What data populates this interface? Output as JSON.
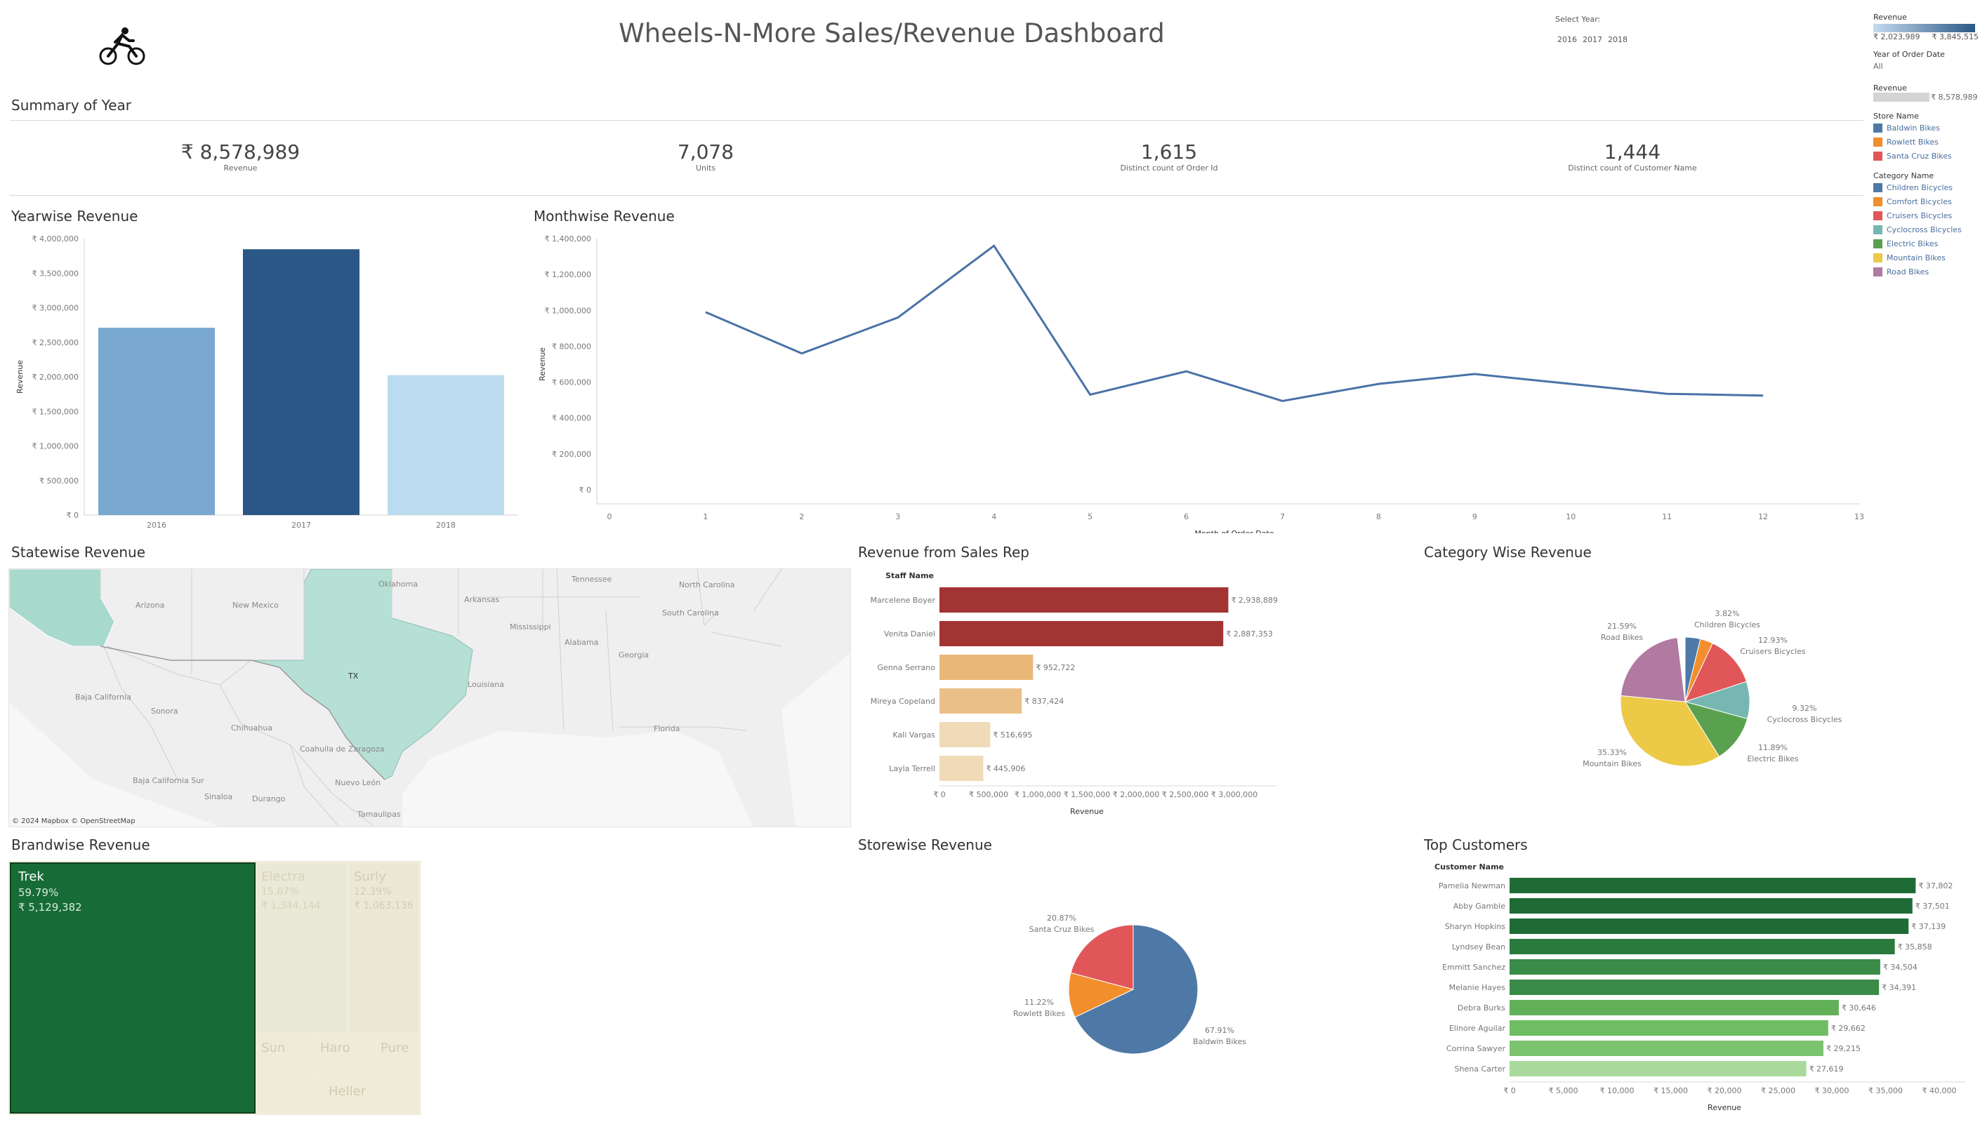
{
  "header": {
    "title": "Wheels-N-More Sales/Revenue Dashboard",
    "select_year_label": "Select Year:",
    "years": [
      "2016",
      "2017",
      "2018"
    ]
  },
  "icons": {
    "logo": "cyclist-icon"
  },
  "summary": {
    "title": "Summary of Year",
    "kpis": [
      {
        "value": "₹ 8,578,989",
        "label": "Revenue"
      },
      {
        "value": "7,078",
        "label": "Units"
      },
      {
        "value": "1,615",
        "label": "Distinct count of Order Id"
      },
      {
        "value": "1,444",
        "label": "Distinct count of Customer Name"
      }
    ]
  },
  "legend": {
    "revenue_title": "Revenue",
    "revenue_min": "₹ 2,023,989",
    "revenue_max": "₹ 3,845,515",
    "year_title": "Year of Order Date",
    "year_value": "All",
    "revenue2_title": "Revenue",
    "revenue2_value": "₹ 8,578,989",
    "store_title": "Store Name",
    "stores": [
      {
        "name": "Baldwin Bikes",
        "color": "#4e79a7"
      },
      {
        "name": "Rowlett Bikes",
        "color": "#f28e2b"
      },
      {
        "name": "Santa Cruz Bikes",
        "color": "#e15759"
      }
    ],
    "category_title": "Category Name",
    "categories": [
      {
        "name": "Children Bicycles",
        "color": "#4e79a7"
      },
      {
        "name": "Comfort Bicycles",
        "color": "#f28e2b"
      },
      {
        "name": "Cruisers Bicycles",
        "color": "#e15759"
      },
      {
        "name": "Cyclocross Bicycles",
        "color": "#76b7b2"
      },
      {
        "name": "Electric Bikes",
        "color": "#59a14f"
      },
      {
        "name": "Mountain Bikes",
        "color": "#edc948"
      },
      {
        "name": "Road Bikes",
        "color": "#b07aa1"
      }
    ]
  },
  "titles": {
    "yearwise": "Yearwise Revenue",
    "monthwise": "Monthwise Revenue",
    "statewise": "Statewise Revenue",
    "salesrep": "Revenue from Sales Rep",
    "category": "Category Wise Revenue",
    "brandwise": "Brandwise Revenue",
    "storewise": "Storewise Revenue",
    "customers": "Top Customers"
  },
  "map": {
    "labels": [
      "Arizona",
      "New Mexico",
      "Oklahoma",
      "Arkansas",
      "Tennessee",
      "North Carolina",
      "South Carolina",
      "Mississippi",
      "Alabama",
      "Georgia",
      "Louisiana",
      "Florida",
      "TX",
      "Baja California",
      "Sonora",
      "Chihuahua",
      "Coahuila de Zaragoza",
      "Baja California Sur",
      "Sinaloa",
      "Durango",
      "Nuevo León",
      "Tamaulipas"
    ],
    "credit": "© 2024 Mapbox © OpenStreetMap"
  },
  "chart_data": [
    {
      "type": "bar",
      "id": "yearwise",
      "title": "Yearwise Revenue",
      "ylabel": "Revenue",
      "categories": [
        "2016",
        "2017",
        "2018"
      ],
      "values": [
        2709484,
        3845515,
        2023989
      ],
      "ylim": [
        0,
        4000000
      ],
      "yticks": [
        "₹ 0",
        "₹ 500,000",
        "₹ 1,000,000",
        "₹ 1,500,000",
        "₹ 2,000,000",
        "₹ 2,500,000",
        "₹ 3,000,000",
        "₹ 3,500,000",
        "₹ 4,000,000"
      ],
      "colors": [
        "#79a9d0",
        "#2a5785",
        "#bbdcef"
      ],
      "gridlines": false
    },
    {
      "type": "line",
      "id": "monthwise",
      "title": "Monthwise Revenue",
      "xlabel": "Month of Order Date",
      "ylabel": "Revenue",
      "x": [
        1,
        2,
        3,
        4,
        5,
        6,
        7,
        8,
        9,
        10,
        11,
        12
      ],
      "y": [
        990000,
        760000,
        960000,
        1360000,
        530000,
        660000,
        495000,
        590000,
        645000,
        590000,
        535000,
        525000
      ],
      "xlim": [
        0,
        13
      ],
      "ylim": [
        0,
        1400000
      ],
      "xticks": [
        "0",
        "1",
        "2",
        "3",
        "4",
        "5",
        "6",
        "7",
        "8",
        "9",
        "10",
        "11",
        "12",
        "13"
      ],
      "yticks": [
        "₹ 0",
        "₹ 200,000",
        "₹ 400,000",
        "₹ 600,000",
        "₹ 800,000",
        "₹ 1,000,000",
        "₹ 1,200,000",
        "₹ 1,400,000"
      ],
      "color": "#4a72a8"
    },
    {
      "type": "bar",
      "id": "salesrep",
      "orientation": "horizontal",
      "title": "Revenue from Sales Rep",
      "xlabel": "Revenue",
      "header": "Staff Name",
      "categories": [
        "Marcelene Boyer",
        "Venita Daniel",
        "Genna Serrano",
        "Mireya Copeland",
        "Kali Vargas",
        "Layla Terrell"
      ],
      "values": [
        2938889,
        2887353,
        952722,
        837424,
        516695,
        445906
      ],
      "labels": [
        "₹ 2,938,889",
        "₹ 2,887,353",
        "₹ 952,722",
        "₹ 837,424",
        "₹ 516,695",
        "₹ 445,906"
      ],
      "colors": [
        "#a23434",
        "#a23434",
        "#e9b876",
        "#ebc088",
        "#f1dab7",
        "#f1dab7"
      ],
      "xlim": [
        0,
        3000000
      ],
      "xticks": [
        "₹ 0",
        "₹ 500,000",
        "₹ 1,000,000",
        "₹ 1,500,000",
        "₹ 2,000,000",
        "₹ 2,500,000",
        "₹ 3,000,000"
      ]
    },
    {
      "type": "pie",
      "id": "category",
      "title": "Category Wise Revenue",
      "slices": [
        {
          "name": "Children Bicycles",
          "pct": 3.82,
          "color": "#4e79a7",
          "label": "3.82%"
        },
        {
          "name": "Comfort Bicycles",
          "pct": 3.2,
          "color": "#f28e2b",
          "label": ""
        },
        {
          "name": "Cruisers Bicycles",
          "pct": 12.93,
          "color": "#e15759",
          "label": "12.93%"
        },
        {
          "name": "Cyclocross Bicycles",
          "pct": 9.32,
          "color": "#76b7b2",
          "label": "9.32%"
        },
        {
          "name": "Electric Bikes",
          "pct": 11.89,
          "color": "#59a14f",
          "label": "11.89%"
        },
        {
          "name": "Mountain Bikes",
          "pct": 35.33,
          "color": "#edc948",
          "label": "35.33%"
        },
        {
          "name": "Road Bikes",
          "pct": 21.59,
          "color": "#b07aa1",
          "label": "21.59%"
        }
      ]
    },
    {
      "type": "treemap",
      "id": "brandwise",
      "title": "Brandwise Revenue",
      "items": [
        {
          "name": "Trek",
          "pct": "59.79%",
          "value": "₹ 5,129,382"
        },
        {
          "name": "Electra",
          "pct": "15.67%",
          "value": "₹ 1,344,144"
        },
        {
          "name": "Surly",
          "pct": "12.39%",
          "value": "₹ 1,063,136"
        },
        {
          "name": "Sun",
          "pct": "",
          "value": ""
        },
        {
          "name": "Haro",
          "pct": "",
          "value": ""
        },
        {
          "name": "Pure",
          "pct": "",
          "value": ""
        },
        {
          "name": "Heller",
          "pct": "",
          "value": ""
        }
      ]
    },
    {
      "type": "pie",
      "id": "storewise",
      "title": "Storewise Revenue",
      "slices": [
        {
          "name": "Baldwin Bikes",
          "pct": 67.91,
          "color": "#4e79a7",
          "label": "67.91%"
        },
        {
          "name": "Rowlett Bikes",
          "pct": 11.22,
          "color": "#f28e2b",
          "label": "11.22%"
        },
        {
          "name": "Santa Cruz Bikes",
          "pct": 20.87,
          "color": "#e15759",
          "label": "20.87%"
        }
      ]
    },
    {
      "type": "bar",
      "id": "customers",
      "orientation": "horizontal",
      "title": "Top Customers",
      "xlabel": "Revenue",
      "header": "Customer Name",
      "categories": [
        "Pamelia Newman",
        "Abby Gamble",
        "Sharyn Hopkins",
        "Lyndsey Bean",
        "Emmitt Sanchez",
        "Melanie Hayes",
        "Debra Burks",
        "Elinore Aguilar",
        "Corrina Sawyer",
        "Shena Carter"
      ],
      "values": [
        37802,
        37501,
        37139,
        35858,
        34504,
        34391,
        30646,
        29662,
        29215,
        27619
      ],
      "labels": [
        "₹ 37,802",
        "₹ 37,501",
        "₹ 37,139",
        "₹ 35,858",
        "₹ 34,504",
        "₹ 34,391",
        "₹ 30,646",
        "₹ 29,662",
        "₹ 29,215",
        "₹ 27,619"
      ],
      "colors": [
        "#1e6b35",
        "#1e6b35",
        "#1e6b35",
        "#2a7a3e",
        "#3a8a48",
        "#3a8a48",
        "#62b057",
        "#6ebd63",
        "#7cc36f",
        "#a9d99b"
      ],
      "xlim": [
        0,
        40000
      ],
      "xticks": [
        "₹ 0",
        "₹ 5,000",
        "₹ 10,000",
        "₹ 15,000",
        "₹ 20,000",
        "₹ 25,000",
        "₹ 30,000",
        "₹ 35,000",
        "₹ 40,000"
      ]
    }
  ]
}
